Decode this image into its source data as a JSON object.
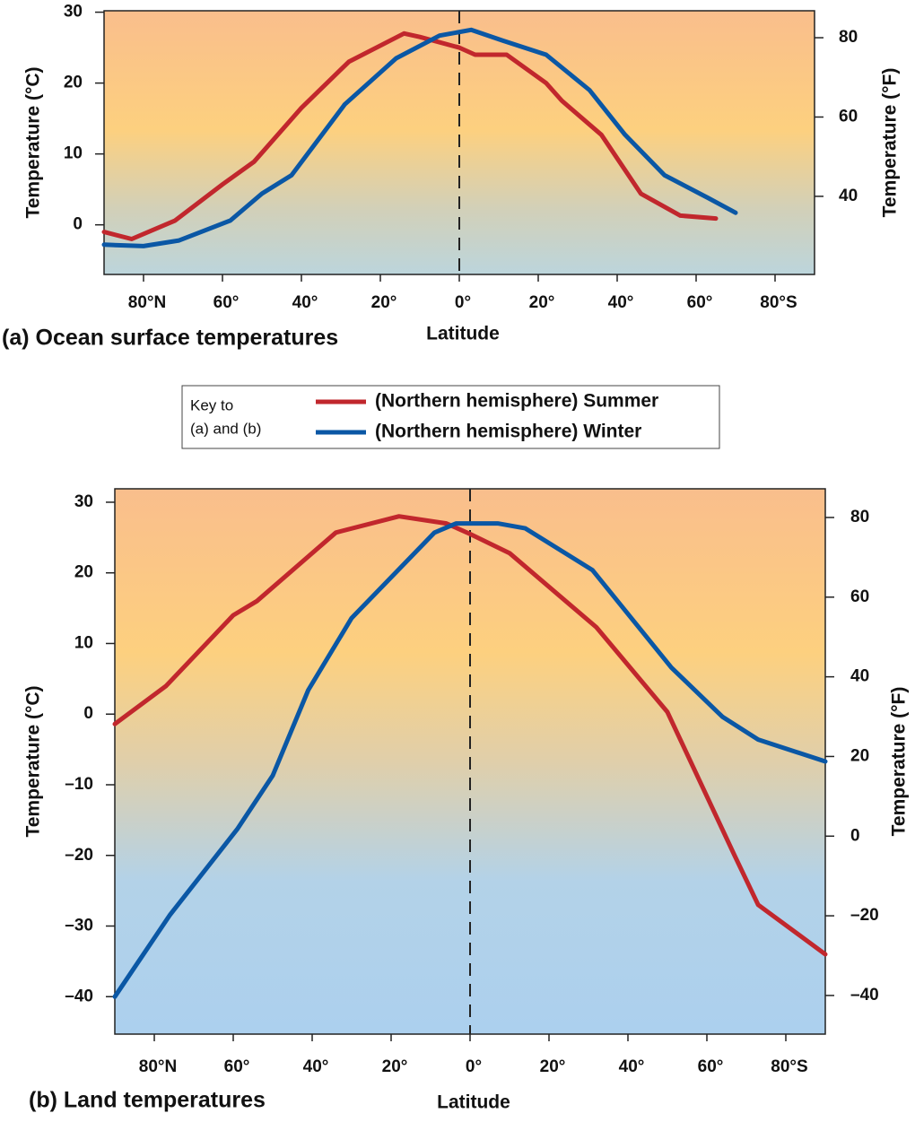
{
  "chart_data": [
    {
      "type": "line",
      "title": "(a) Ocean surface temperatures",
      "x_label": "Latitude",
      "y_label": "Temperature (°C)",
      "y2_label": "Temperature (°F)",
      "xlim": [
        90,
        -90
      ],
      "xticks": [
        {
          "value": 80,
          "label": "80°N"
        },
        {
          "value": 60,
          "label": "60°"
        },
        {
          "value": 40,
          "label": "40°"
        },
        {
          "value": 20,
          "label": "20°"
        },
        {
          "value": 0,
          "label": "0°"
        },
        {
          "value": -20,
          "label": "20°"
        },
        {
          "value": -40,
          "label": "40°"
        },
        {
          "value": -60,
          "label": "60°"
        },
        {
          "value": -80,
          "label": "80°S"
        }
      ],
      "ylim": [
        -7,
        30.2
      ],
      "yticks": [
        0,
        10,
        20,
        30
      ],
      "y2lim": [
        20.3,
        86.8
      ],
      "y2ticks": [
        40,
        60,
        80
      ],
      "vlines": [
        0
      ],
      "series": [
        {
          "name": "(Northern hemisphere) Summer",
          "color": "#c1272d",
          "x": [
            90,
            83,
            72,
            60,
            52,
            40,
            28,
            14,
            10,
            0,
            -4,
            -12,
            -22,
            -26,
            -36,
            -46,
            -56,
            -65
          ],
          "values": [
            -1,
            -2,
            0.6,
            5.7,
            8.9,
            16.5,
            23,
            27,
            26.5,
            25,
            24,
            24,
            20,
            17.5,
            12.7,
            4.4,
            1.3,
            0.9
          ]
        },
        {
          "name": "(Northern hemisphere) Winter",
          "color": "#0a57a5",
          "x": [
            90,
            80,
            71,
            58,
            50,
            42.5,
            29,
            16,
            5,
            -3,
            -11,
            -22,
            -33,
            -42,
            -52,
            -63,
            -70
          ],
          "values": [
            -2.8,
            -3,
            -2.2,
            0.6,
            4.4,
            7,
            17,
            23.5,
            26.7,
            27.5,
            26,
            24,
            19,
            12.7,
            7,
            3.8,
            1.7
          ]
        }
      ]
    },
    {
      "type": "line",
      "title": "(b) Land temperatures",
      "x_label": "Latitude",
      "y_label": "Temperature (°C)",
      "y2_label": "Temperature (°F)",
      "xlim": [
        90,
        -90
      ],
      "xticks": [
        {
          "value": 80,
          "label": "80°N"
        },
        {
          "value": 60,
          "label": "60°"
        },
        {
          "value": 40,
          "label": "40°"
        },
        {
          "value": 20,
          "label": "20°"
        },
        {
          "value": 0,
          "label": "0°"
        },
        {
          "value": -20,
          "label": "20°"
        },
        {
          "value": -40,
          "label": "40°"
        },
        {
          "value": -60,
          "label": "60°"
        },
        {
          "value": -80,
          "label": "80°S"
        }
      ],
      "ylim": [
        -45.3,
        31.9
      ],
      "yticks": [
        30,
        20,
        10,
        0,
        {
          "value": -10,
          "label": "–10"
        },
        {
          "value": -20,
          "label": "–20"
        },
        {
          "value": -30,
          "label": "–30"
        },
        {
          "value": -40,
          "label": "–40"
        }
      ],
      "y2lim": [
        -49.7,
        87.2
      ],
      "y2ticks": [
        80,
        60,
        40,
        20,
        0,
        {
          "value": -20,
          "label": "–20"
        },
        {
          "value": -40,
          "label": "–40"
        }
      ],
      "vlines": [
        0
      ],
      "series": [
        {
          "color": "#c1272d",
          "x": [
            90,
            77,
            60,
            54,
            34,
            18,
            6,
            0,
            -10,
            -32,
            -50,
            -67,
            -73,
            -90
          ],
          "values": [
            -1.4,
            4,
            14,
            16,
            25.7,
            28,
            27,
            25.5,
            22.8,
            12.3,
            0.3,
            -20,
            -27,
            -34
          ]
        },
        {
          "color": "#0a57a5",
          "x": [
            90,
            76,
            59,
            50,
            41,
            30,
            9,
            3.5,
            -7,
            -14,
            -31,
            -51,
            -64,
            -73,
            -90
          ],
          "values": [
            -40,
            -28.4,
            -16.3,
            -8.7,
            3.4,
            13.6,
            25.7,
            27,
            27,
            26.3,
            20.4,
            6.6,
            -0.4,
            -3.6,
            -6.7
          ]
        }
      ]
    }
  ],
  "legend": {
    "title": [
      "Key to",
      "(a) and (b)"
    ]
  }
}
